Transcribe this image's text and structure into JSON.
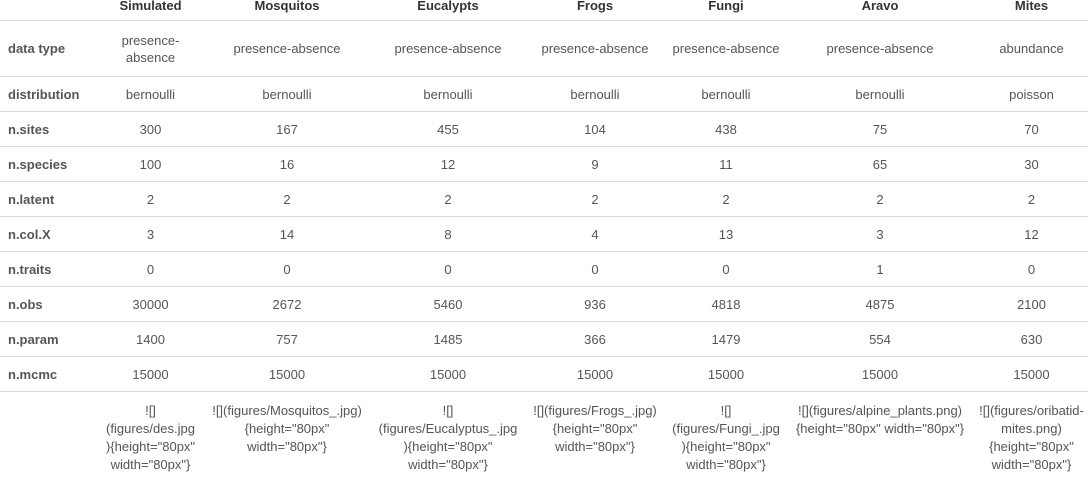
{
  "columns": [
    "Simulated",
    "Mosquitos",
    "Eucalypts",
    "Frogs",
    "Fungi",
    "Aravo",
    "Mites"
  ],
  "rows": {
    "data_type": {
      "label": "data type",
      "values": [
        "presence-absence",
        "presence-absence",
        "presence-absence",
        "presence-absence",
        "presence-absence",
        "presence-absence",
        "abundance"
      ]
    },
    "distribution": {
      "label": "distribution",
      "values": [
        "bernoulli",
        "bernoulli",
        "bernoulli",
        "bernoulli",
        "bernoulli",
        "bernoulli",
        "poisson"
      ]
    },
    "n_sites": {
      "label": "n.sites",
      "values": [
        "300",
        "167",
        "455",
        "104",
        "438",
        "75",
        "70"
      ]
    },
    "n_species": {
      "label": "n.species",
      "values": [
        "100",
        "16",
        "12",
        "9",
        "11",
        "65",
        "30"
      ]
    },
    "n_latent": {
      "label": "n.latent",
      "values": [
        "2",
        "2",
        "2",
        "2",
        "2",
        "2",
        "2"
      ]
    },
    "n_col_x": {
      "label": "n.col.X",
      "values": [
        "3",
        "14",
        "8",
        "4",
        "13",
        "3",
        "12"
      ]
    },
    "n_traits": {
      "label": "n.traits",
      "values": [
        "0",
        "0",
        "0",
        "0",
        "0",
        "1",
        "0"
      ]
    },
    "n_obs": {
      "label": "n.obs",
      "values": [
        "30000",
        "2672",
        "5460",
        "936",
        "4818",
        "4875",
        "2100"
      ]
    },
    "n_param": {
      "label": "n.param",
      "values": [
        "1400",
        "757",
        "1485",
        "366",
        "1479",
        "554",
        "630"
      ]
    },
    "n_mcmc": {
      "label": "n.mcmc",
      "values": [
        "15000",
        "15000",
        "15000",
        "15000",
        "15000",
        "15000",
        "15000"
      ]
    }
  },
  "figures": [
    "![](figures/des.jpg){height=\"80px\" width=\"80px\"}",
    "![](figures/Mosquitos_.jpg){height=\"80px\" width=\"80px\"}",
    "![](figures/Eucalyptus_.jpg){height=\"80px\" width=\"80px\"}",
    "![](figures/Frogs_.jpg){height=\"80px\" width=\"80px\"}",
    "![](figures/Fungi_.jpg){height=\"80px\" width=\"80px\"}",
    "![](figures/alpine_plants.png){height=\"80px\" width=\"80px\"}",
    "![](figures/oribatid-mites.png){height=\"80px\" width=\"80px\"}"
  ]
}
